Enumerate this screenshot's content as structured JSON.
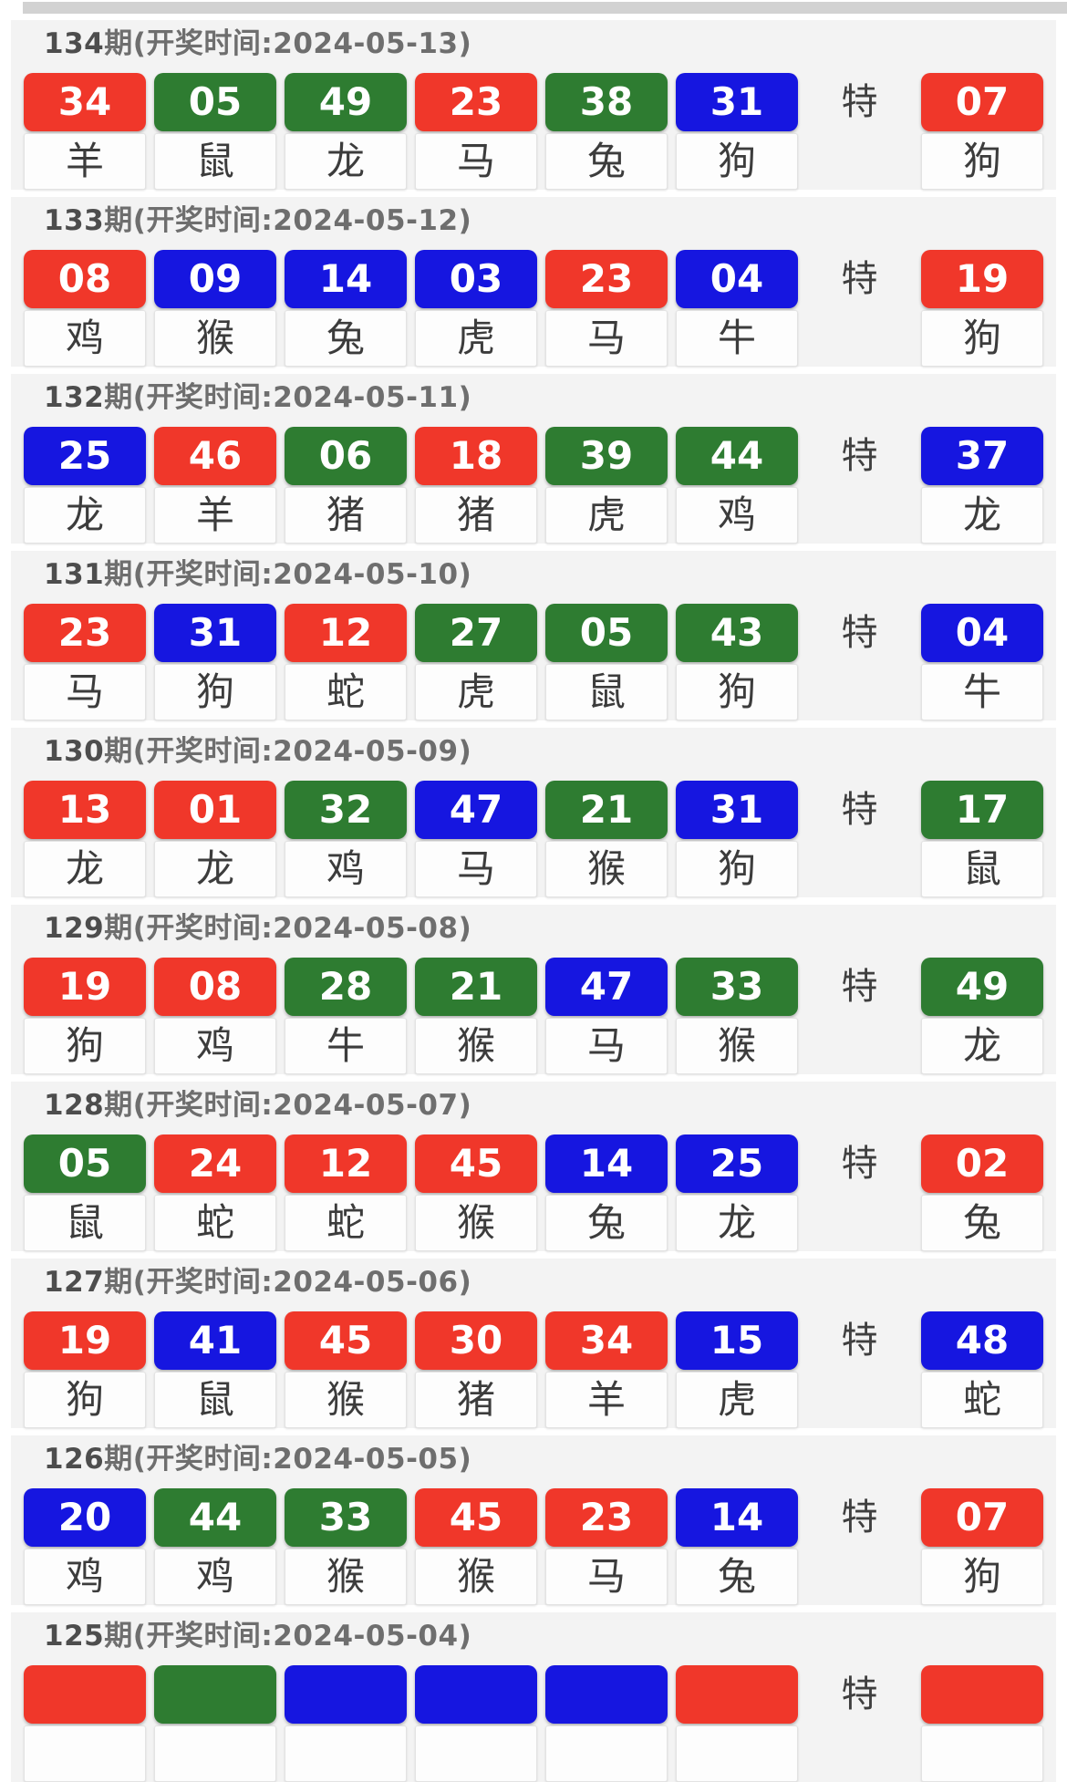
{
  "page": {
    "special_marker": "特"
  },
  "colors": {
    "red": "#f0372a",
    "green": "#2e7c31",
    "blue": "#1616e0"
  },
  "periods": [
    {
      "period": "134",
      "title_rest": "期(开奖时间:2024-05-13)",
      "balls": [
        {
          "num": "34",
          "color": "red",
          "zodiac": "羊"
        },
        {
          "num": "05",
          "color": "green",
          "zodiac": "鼠"
        },
        {
          "num": "49",
          "color": "green",
          "zodiac": "龙"
        },
        {
          "num": "23",
          "color": "red",
          "zodiac": "马"
        },
        {
          "num": "38",
          "color": "green",
          "zodiac": "兔"
        },
        {
          "num": "31",
          "color": "blue",
          "zodiac": "狗"
        }
      ],
      "special": {
        "num": "07",
        "color": "red",
        "zodiac": "狗"
      }
    },
    {
      "period": "133",
      "title_rest": "期(开奖时间:2024-05-12)",
      "balls": [
        {
          "num": "08",
          "color": "red",
          "zodiac": "鸡"
        },
        {
          "num": "09",
          "color": "blue",
          "zodiac": "猴"
        },
        {
          "num": "14",
          "color": "blue",
          "zodiac": "兔"
        },
        {
          "num": "03",
          "color": "blue",
          "zodiac": "虎"
        },
        {
          "num": "23",
          "color": "red",
          "zodiac": "马"
        },
        {
          "num": "04",
          "color": "blue",
          "zodiac": "牛"
        }
      ],
      "special": {
        "num": "19",
        "color": "red",
        "zodiac": "狗"
      }
    },
    {
      "period": "132",
      "title_rest": "期(开奖时间:2024-05-11)",
      "balls": [
        {
          "num": "25",
          "color": "blue",
          "zodiac": "龙"
        },
        {
          "num": "46",
          "color": "red",
          "zodiac": "羊"
        },
        {
          "num": "06",
          "color": "green",
          "zodiac": "猪"
        },
        {
          "num": "18",
          "color": "red",
          "zodiac": "猪"
        },
        {
          "num": "39",
          "color": "green",
          "zodiac": "虎"
        },
        {
          "num": "44",
          "color": "green",
          "zodiac": "鸡"
        }
      ],
      "special": {
        "num": "37",
        "color": "blue",
        "zodiac": "龙"
      }
    },
    {
      "period": "131",
      "title_rest": "期(开奖时间:2024-05-10)",
      "balls": [
        {
          "num": "23",
          "color": "red",
          "zodiac": "马"
        },
        {
          "num": "31",
          "color": "blue",
          "zodiac": "狗"
        },
        {
          "num": "12",
          "color": "red",
          "zodiac": "蛇"
        },
        {
          "num": "27",
          "color": "green",
          "zodiac": "虎"
        },
        {
          "num": "05",
          "color": "green",
          "zodiac": "鼠"
        },
        {
          "num": "43",
          "color": "green",
          "zodiac": "狗"
        }
      ],
      "special": {
        "num": "04",
        "color": "blue",
        "zodiac": "牛"
      }
    },
    {
      "period": "130",
      "title_rest": "期(开奖时间:2024-05-09)",
      "balls": [
        {
          "num": "13",
          "color": "red",
          "zodiac": "龙"
        },
        {
          "num": "01",
          "color": "red",
          "zodiac": "龙"
        },
        {
          "num": "32",
          "color": "green",
          "zodiac": "鸡"
        },
        {
          "num": "47",
          "color": "blue",
          "zodiac": "马"
        },
        {
          "num": "21",
          "color": "green",
          "zodiac": "猴"
        },
        {
          "num": "31",
          "color": "blue",
          "zodiac": "狗"
        }
      ],
      "special": {
        "num": "17",
        "color": "green",
        "zodiac": "鼠"
      }
    },
    {
      "period": "129",
      "title_rest": "期(开奖时间:2024-05-08)",
      "balls": [
        {
          "num": "19",
          "color": "red",
          "zodiac": "狗"
        },
        {
          "num": "08",
          "color": "red",
          "zodiac": "鸡"
        },
        {
          "num": "28",
          "color": "green",
          "zodiac": "牛"
        },
        {
          "num": "21",
          "color": "green",
          "zodiac": "猴"
        },
        {
          "num": "47",
          "color": "blue",
          "zodiac": "马"
        },
        {
          "num": "33",
          "color": "green",
          "zodiac": "猴"
        }
      ],
      "special": {
        "num": "49",
        "color": "green",
        "zodiac": "龙"
      }
    },
    {
      "period": "128",
      "title_rest": "期(开奖时间:2024-05-07)",
      "balls": [
        {
          "num": "05",
          "color": "green",
          "zodiac": "鼠"
        },
        {
          "num": "24",
          "color": "red",
          "zodiac": "蛇"
        },
        {
          "num": "12",
          "color": "red",
          "zodiac": "蛇"
        },
        {
          "num": "45",
          "color": "red",
          "zodiac": "猴"
        },
        {
          "num": "14",
          "color": "blue",
          "zodiac": "兔"
        },
        {
          "num": "25",
          "color": "blue",
          "zodiac": "龙"
        }
      ],
      "special": {
        "num": "02",
        "color": "red",
        "zodiac": "兔"
      }
    },
    {
      "period": "127",
      "title_rest": "期(开奖时间:2024-05-06)",
      "balls": [
        {
          "num": "19",
          "color": "red",
          "zodiac": "狗"
        },
        {
          "num": "41",
          "color": "blue",
          "zodiac": "鼠"
        },
        {
          "num": "45",
          "color": "red",
          "zodiac": "猴"
        },
        {
          "num": "30",
          "color": "red",
          "zodiac": "猪"
        },
        {
          "num": "34",
          "color": "red",
          "zodiac": "羊"
        },
        {
          "num": "15",
          "color": "blue",
          "zodiac": "虎"
        }
      ],
      "special": {
        "num": "48",
        "color": "blue",
        "zodiac": "蛇"
      }
    },
    {
      "period": "126",
      "title_rest": "期(开奖时间:2024-05-05)",
      "balls": [
        {
          "num": "20",
          "color": "blue",
          "zodiac": "鸡"
        },
        {
          "num": "44",
          "color": "green",
          "zodiac": "鸡"
        },
        {
          "num": "33",
          "color": "green",
          "zodiac": "猴"
        },
        {
          "num": "45",
          "color": "red",
          "zodiac": "猴"
        },
        {
          "num": "23",
          "color": "red",
          "zodiac": "马"
        },
        {
          "num": "14",
          "color": "blue",
          "zodiac": "兔"
        }
      ],
      "special": {
        "num": "07",
        "color": "red",
        "zodiac": "狗"
      }
    },
    {
      "period": "125",
      "title_rest": "期(开奖时间:2024-05-04)",
      "balls": [
        {
          "num": "",
          "color": "red",
          "zodiac": ""
        },
        {
          "num": "",
          "color": "green",
          "zodiac": ""
        },
        {
          "num": "",
          "color": "blue",
          "zodiac": ""
        },
        {
          "num": "",
          "color": "blue",
          "zodiac": ""
        },
        {
          "num": "",
          "color": "blue",
          "zodiac": ""
        },
        {
          "num": "",
          "color": "red",
          "zodiac": ""
        }
      ],
      "special": {
        "num": "",
        "color": "red",
        "zodiac": ""
      }
    }
  ]
}
